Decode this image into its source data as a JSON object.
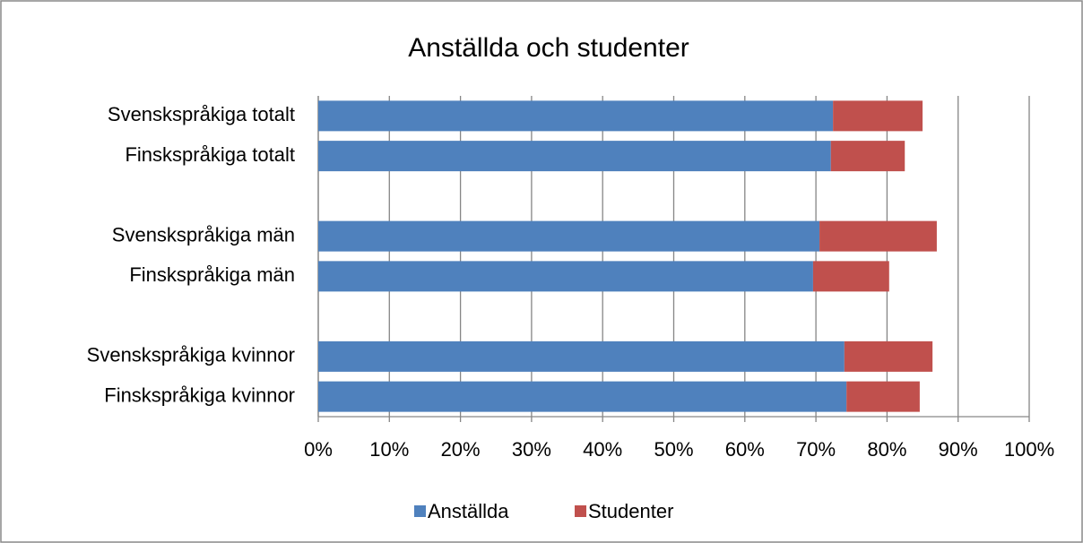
{
  "chart_data": {
    "type": "stacked-barh",
    "title": "Anställda och studenter",
    "categories": [
      "Svenskspråkiga totalt",
      "Finskspråkiga totalt",
      null,
      "Svenskspråkiga män",
      "Finskspråkiga män",
      null,
      "Svenskspråkiga kvinnor",
      "Finskspråkiga kvinnor"
    ],
    "series": [
      {
        "name": "Anställda",
        "color": "#4f81bd",
        "values": [
          72.4,
          72.1,
          null,
          70.5,
          69.6,
          null,
          74.0,
          74.3
        ]
      },
      {
        "name": "Studenter",
        "color": "#c0504d",
        "values": [
          12.6,
          10.4,
          null,
          16.5,
          10.7,
          null,
          12.4,
          10.3
        ]
      }
    ],
    "xlim": [
      0,
      100
    ],
    "xticks": [
      {
        "value": 0,
        "label": "0%"
      },
      {
        "value": 10,
        "label": "10%"
      },
      {
        "value": 20,
        "label": "20%"
      },
      {
        "value": 30,
        "label": "30%"
      },
      {
        "value": 40,
        "label": "40%"
      },
      {
        "value": 50,
        "label": "50%"
      },
      {
        "value": 60,
        "label": "60%"
      },
      {
        "value": 70,
        "label": "70%"
      },
      {
        "value": 80,
        "label": "80%"
      },
      {
        "value": 90,
        "label": "90%"
      },
      {
        "value": 100,
        "label": "100%"
      }
    ],
    "grid": true,
    "legend": "bottom"
  }
}
